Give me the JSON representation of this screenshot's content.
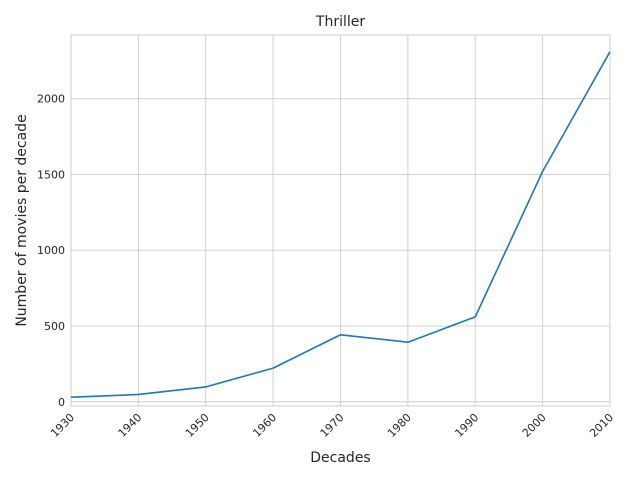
{
  "chart_data": {
    "type": "line",
    "title": "Thriller",
    "xlabel": "Decades",
    "ylabel": "Number of movies per decade",
    "x": [
      1930,
      1940,
      1950,
      1960,
      1970,
      1980,
      1990,
      2000,
      2010
    ],
    "xticks": [
      "1930",
      "1940",
      "1950",
      "1960",
      "1970",
      "1980",
      "1990",
      "2000",
      "2010"
    ],
    "yticks": [
      "0",
      "500",
      "1000",
      "1500",
      "2000"
    ],
    "series": [
      {
        "values": [
          30,
          48,
          98,
          222,
          442,
          393,
          560,
          1520,
          2310
        ]
      }
    ],
    "xlim": [
      1930,
      2010
    ],
    "ylim": [
      -28,
      2420
    ],
    "grid": true,
    "line_color": "#1f77b4"
  }
}
